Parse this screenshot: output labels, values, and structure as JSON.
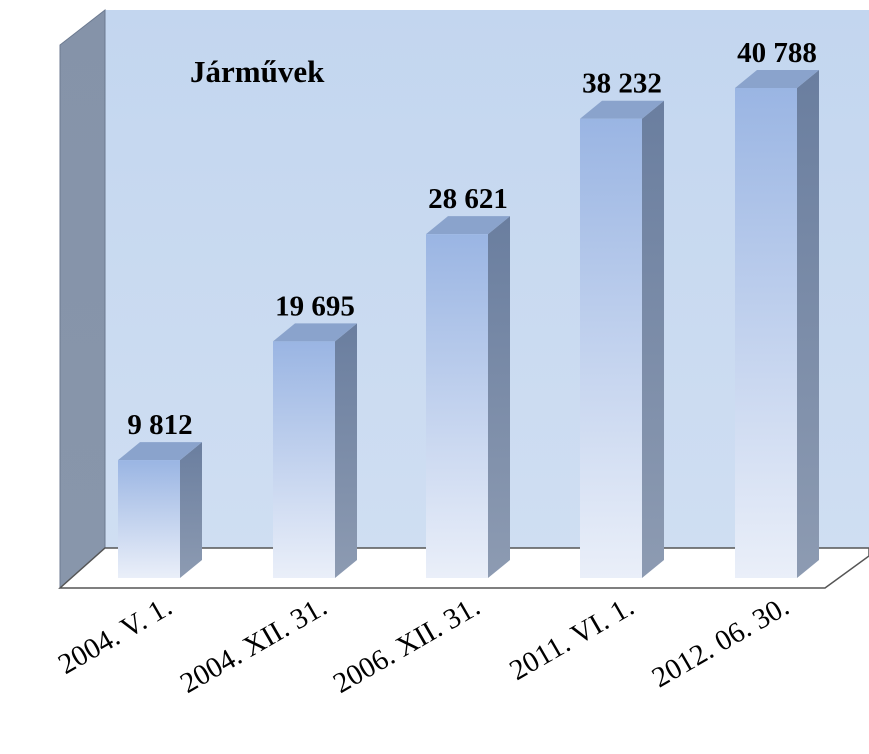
{
  "chart_data": {
    "type": "bar3d",
    "title": "Járművek",
    "categories": [
      "2004. V. 1.",
      "2004. XII. 31.",
      "2006. XII. 31.",
      "2011. VI. 1.",
      "2012. 06. 30."
    ],
    "values": [
      9812,
      19695,
      28621,
      38232,
      40788
    ],
    "value_labels": [
      "9 812",
      "19 695",
      "28 621",
      "38 232",
      "40 788"
    ],
    "color": "#9db8e4"
  }
}
